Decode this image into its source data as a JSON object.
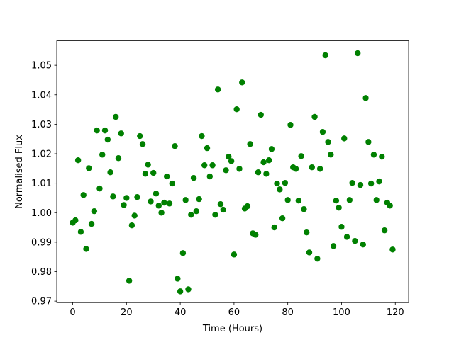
{
  "chart_data": {
    "type": "scatter",
    "xlabel": "Time (Hours)",
    "ylabel": "Normalised Flux",
    "x": [
      0,
      1,
      2,
      3,
      4,
      5,
      6,
      7,
      8,
      9,
      10,
      11,
      12,
      13,
      14,
      15,
      16,
      17,
      18,
      19,
      20,
      21,
      22,
      23,
      24,
      25,
      26,
      27,
      28,
      29,
      30,
      31,
      32,
      33,
      34,
      35,
      36,
      37,
      38,
      39,
      40,
      41,
      42,
      43,
      44,
      45,
      46,
      47,
      48,
      49,
      50,
      51,
      52,
      53,
      54,
      55,
      56,
      57,
      58,
      59,
      60,
      61,
      62,
      63,
      64,
      65,
      66,
      67,
      68,
      69,
      70,
      71,
      72,
      73,
      74,
      75,
      76,
      77,
      78,
      79,
      80,
      81,
      82,
      83,
      84,
      85,
      86,
      87,
      88,
      89,
      90,
      91,
      92,
      93,
      94,
      95,
      96,
      97,
      98,
      99,
      100,
      101,
      102,
      103,
      104,
      105,
      106,
      107,
      108,
      109,
      110,
      111,
      112,
      113,
      114,
      115,
      116,
      117,
      118,
      119
    ],
    "series": [
      {
        "color": "#008000",
        "values": [
          0.9966,
          0.9974,
          1.0178,
          0.9935,
          1.006,
          0.9877,
          1.0151,
          0.9962,
          1.0005,
          1.0279,
          1.0082,
          1.0197,
          1.0279,
          1.0248,
          1.0137,
          1.0055,
          1.0325,
          1.0185,
          1.0269,
          1.0026,
          1.005,
          0.9769,
          0.9957,
          0.999,
          1.0053,
          1.026,
          1.0233,
          1.0132,
          1.0163,
          1.0038,
          1.0135,
          1.0065,
          1.0024,
          1.0,
          1.0034,
          1.0123,
          1.0031,
          1.0099,
          1.0226,
          0.9776,
          0.9733,
          0.9863,
          1.0043,
          0.974,
          0.9993,
          1.0118,
          1.0005,
          1.0046,
          1.026,
          1.0161,
          1.0219,
          1.0123,
          1.0161,
          0.9993,
          1.0418,
          1.0029,
          1.001,
          1.0144,
          1.019,
          1.0175,
          0.9858,
          1.0351,
          1.0149,
          1.0442,
          1.0014,
          1.0022,
          1.0233,
          0.993,
          0.9925,
          1.0137,
          1.0332,
          1.0171,
          1.0132,
          1.0178,
          1.0216,
          0.995,
          1.0099,
          1.0079,
          0.9981,
          1.0101,
          1.0043,
          1.0298,
          1.0154,
          1.0149,
          1.0041,
          1.0192,
          1.0012,
          0.9933,
          0.9865,
          1.0154,
          1.0325,
          0.9844,
          1.0149,
          1.0274,
          1.0534,
          1.024,
          1.0197,
          0.9887,
          1.0041,
          1.0017,
          0.9952,
          1.0252,
          0.9918,
          1.0043,
          1.0101,
          0.9904,
          1.0541,
          1.0094,
          0.9892,
          1.0389,
          1.024,
          1.0099,
          1.0197,
          1.0043,
          1.0106,
          1.019,
          0.994,
          1.0034,
          1.0024,
          0.9875
        ]
      }
    ],
    "xlim": [
      -5.95,
      124.95
    ],
    "xticks": [
      0,
      20,
      40,
      60,
      80,
      100,
      120
    ],
    "ylim": [
      0.9695,
      1.0583
    ],
    "yticks": [
      0.97,
      0.98,
      0.99,
      {
        "value": 1,
        "label": "1.00"
      },
      1.01,
      1.02,
      1.03,
      1.04,
      1.05
    ]
  }
}
